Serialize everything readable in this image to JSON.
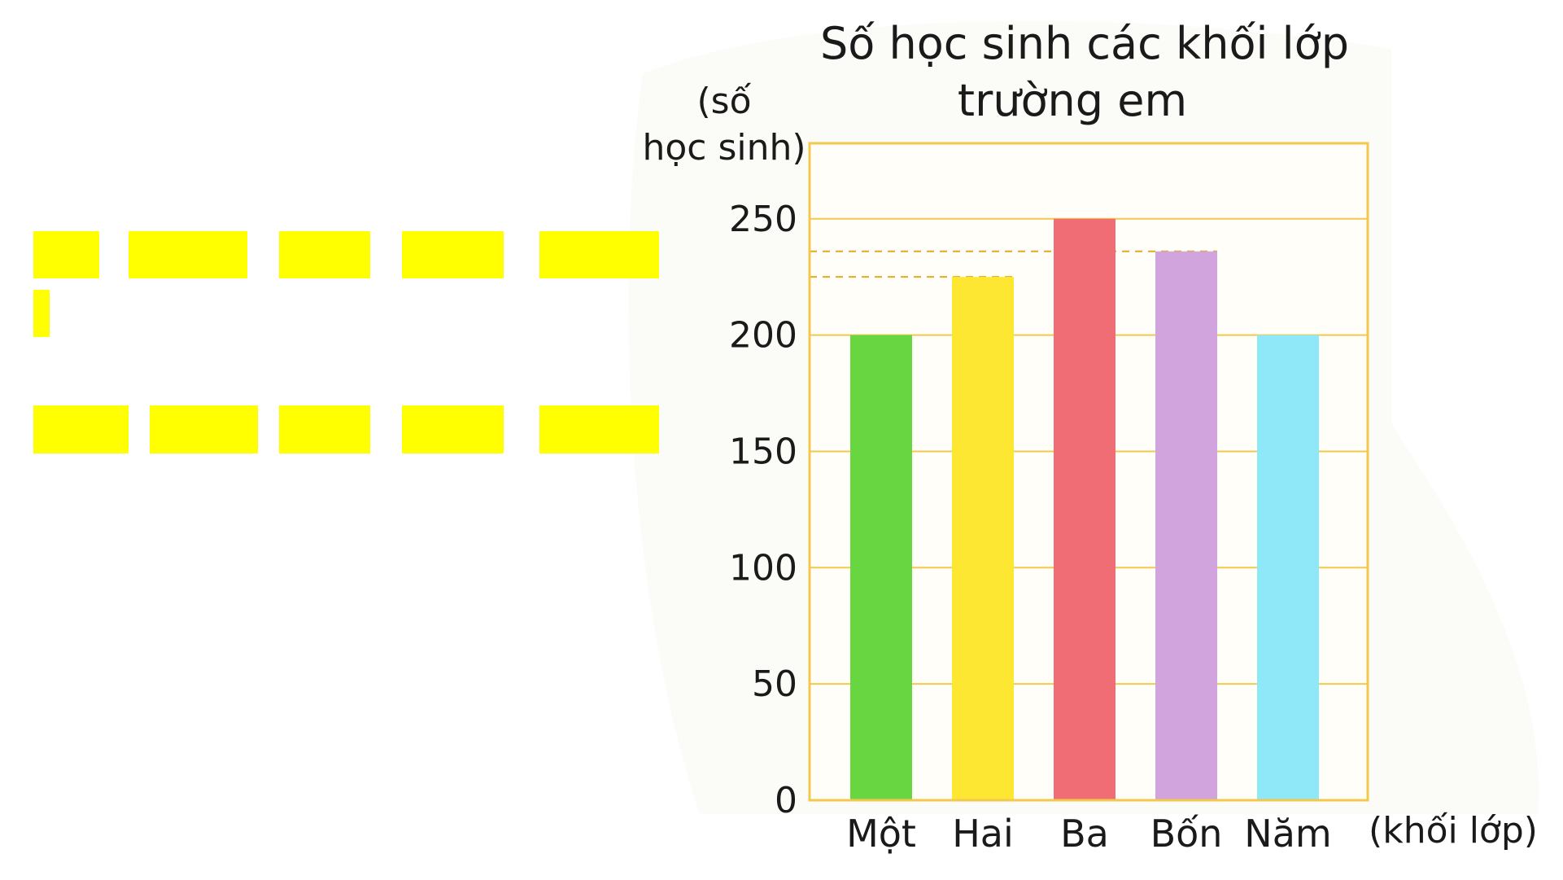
{
  "chart_data": {
    "type": "bar",
    "title": [
      "Số học sinh các khối lớp",
      "trường em"
    ],
    "ylabel": [
      "(số",
      "học sinh)"
    ],
    "xlabel": "(khối lớp)",
    "categories": [
      "Một",
      "Hai",
      "Ba",
      "Bốn",
      "Năm"
    ],
    "values": [
      200,
      225,
      250,
      236,
      200
    ],
    "colors": [
      "#68d641",
      "#fde733",
      "#f06d76",
      "#d2a4de",
      "#8ee8f8"
    ],
    "yticks": [
      0,
      50,
      100,
      150,
      200,
      250
    ],
    "ylim": [
      0,
      285
    ],
    "grid": true,
    "dashed_guides_at": [
      225,
      236
    ]
  }
}
